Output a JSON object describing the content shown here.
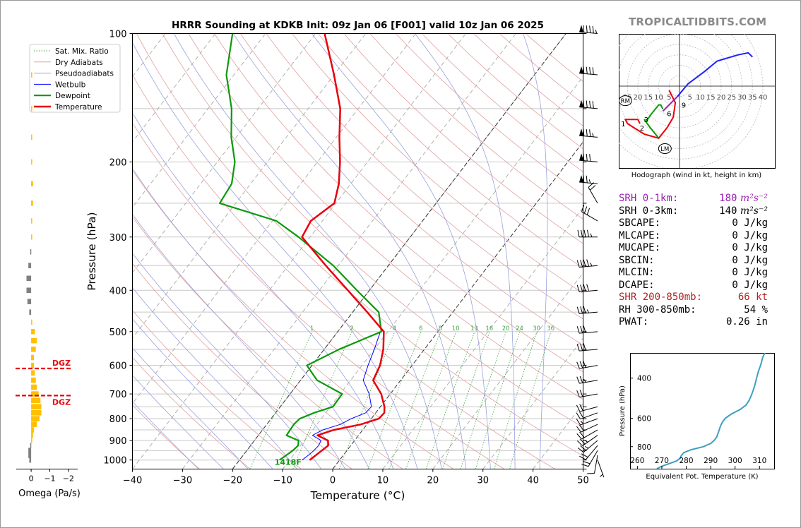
{
  "brand": "TROPICALTIDBITS.COM",
  "title": "HRRR Sounding at KDKB Init: 09z Jan 06 [F001] valid 10z Jan 06 2025",
  "colors": {
    "temperature": "#e8000b",
    "dewpoint": "#0a9a0a",
    "wetbulb": "#0000ff",
    "purple": "#9b1fb5",
    "hodo_blue": "#1f1fff",
    "thetae": "#3f9fbf",
    "dgz": "#e8000b",
    "omega_up": "#ffc000",
    "omega_down": "#808080"
  },
  "chart_data": [
    {
      "type": "line",
      "name": "skew-t",
      "xlabel": "Temperature (°C)",
      "ylabel": "Pressure (hPa)",
      "xlim": [
        -40,
        50
      ],
      "ylim": [
        1050,
        100
      ],
      "y_scale": "log",
      "xticks": [
        "−40",
        "−30",
        "−20",
        "−10",
        "0",
        "10",
        "20",
        "30",
        "40",
        "50"
      ],
      "yticks": [
        "100",
        "200",
        "300",
        "400",
        "500",
        "600",
        "700",
        "800",
        "900",
        "1000"
      ],
      "yticks_values": [
        100,
        200,
        300,
        400,
        500,
        600,
        700,
        800,
        900,
        1000
      ],
      "legend": {
        "placement": "top-left",
        "entries": [
          "Sat. Mix. Ratio",
          "Dry Adiabats",
          "Pseudoadiabats",
          "Wetbulb",
          "Dewpoint",
          "Temperature"
        ]
      },
      "temperature": {
        "p": [
          1000,
          975,
          950,
          925,
          900,
          875,
          850,
          825,
          800,
          775,
          750,
          700,
          650,
          600,
          550,
          500,
          450,
          400,
          350,
          300,
          275,
          250,
          225,
          200,
          175,
          150,
          125,
          100
        ],
        "t": [
          -6,
          -5.5,
          -5,
          -4.5,
          -5.3,
          -8.2,
          -5.8,
          -1.2,
          1.5,
          1.7,
          0.8,
          -1.8,
          -5.5,
          -6.4,
          -8.2,
          -10.8,
          -17.1,
          -24.3,
          -32.5,
          -41.6,
          -42.3,
          -40.3,
          -42.4,
          -45.5,
          -49.4,
          -53.6,
          -60,
          -68.2
        ]
      },
      "dewpoint": {
        "p": [
          1000,
          975,
          950,
          925,
          900,
          875,
          850,
          825,
          800,
          775,
          750,
          700,
          650,
          600,
          550,
          500,
          450,
          400,
          350,
          300,
          275,
          250,
          225,
          200,
          175,
          150,
          125,
          100
        ],
        "t": [
          -12,
          -11.4,
          -10.8,
          -10.5,
          -11.2,
          -14.4,
          -14.5,
          -14.6,
          -14.3,
          -12.3,
          -9.5,
          -9.6,
          -16.7,
          -21,
          -17,
          -11.3,
          -14.8,
          -22.5,
          -31,
          -42.3,
          -49.2,
          -63.2,
          -63.8,
          -66.5,
          -71,
          -75.3,
          -81.5,
          -86.6
        ]
      },
      "wetbulb": {
        "p": [
          1000,
          975,
          950,
          925,
          900,
          875,
          850,
          825,
          800,
          775,
          750,
          700,
          650,
          600,
          550,
          500
        ],
        "t": [
          -7.5,
          -7,
          -6.6,
          -6.4,
          -6.7,
          -9.2,
          -8,
          -5.3,
          -4,
          -2,
          -1.8,
          -4.2,
          -7.5,
          -8.8,
          -10,
          -11.5
        ]
      },
      "sat_mix_ratio_labels": [
        "1",
        "2",
        "4",
        "6",
        "8",
        "10",
        "13",
        "16",
        "20",
        "24",
        "30",
        "36"
      ],
      "sat_mix_ratio_values": [
        1,
        2,
        4,
        6,
        8,
        10,
        13,
        16,
        20,
        24,
        30,
        36
      ],
      "surface_label": "1418F",
      "wind_barbs": {
        "p": [
          1000,
          975,
          950,
          925,
          900,
          875,
          850,
          825,
          800,
          775,
          750,
          700,
          650,
          600,
          550,
          500,
          450,
          400,
          350,
          300,
          275,
          250,
          225,
          200,
          175,
          150,
          125,
          100
        ],
        "speed_kt": [
          5,
          12,
          18,
          22,
          25,
          25,
          20,
          18,
          16,
          18,
          20,
          22,
          24,
          28,
          30,
          32,
          35,
          40,
          45,
          45,
          30,
          20,
          75,
          80,
          85,
          90,
          90,
          95
        ],
        "dir_deg": [
          160,
          190,
          210,
          220,
          230,
          235,
          240,
          245,
          250,
          250,
          255,
          260,
          260,
          260,
          265,
          265,
          265,
          265,
          265,
          270,
          300,
          330,
          275,
          275,
          275,
          275,
          275,
          275
        ]
      }
    },
    {
      "type": "bar",
      "name": "omega",
      "xlabel": "Omega (Pa/s)",
      "xticks": [
        "0",
        "−1",
        "−2"
      ],
      "xlim": [
        0.8,
        -2.5
      ],
      "dgz_label": "DGZ",
      "dgz_pressures": [
        610,
        706
      ],
      "p": [
        1000,
        975,
        950,
        925,
        900,
        875,
        850,
        825,
        800,
        775,
        750,
        725,
        700,
        675,
        650,
        625,
        600,
        575,
        550,
        525,
        500,
        475,
        450,
        425,
        400,
        375,
        350,
        325,
        300,
        275,
        250,
        225,
        200,
        175,
        150,
        125
      ],
      "omega": [
        0.1,
        0.15,
        0.15,
        0.05,
        -0.05,
        -0.1,
        -0.15,
        -0.3,
        -0.45,
        -0.55,
        -0.55,
        -0.5,
        -0.4,
        -0.3,
        -0.25,
        -0.2,
        -0.15,
        -0.15,
        -0.25,
        -0.3,
        -0.2,
        -0.05,
        0.1,
        0.2,
        0.25,
        0.25,
        0.15,
        0.05,
        -0.05,
        -0.05,
        -0.1,
        -0.1,
        -0.05,
        -0.05,
        -0.05,
        -0.03
      ]
    },
    {
      "type": "line",
      "name": "hodograph",
      "caption": "Hodograph (wind in kt, height in km)",
      "ring_labels": [
        "5",
        "10",
        "15",
        "20",
        "25",
        "30",
        "35",
        "40"
      ],
      "ring_left_labels": [
        "25",
        "20",
        "15",
        "10",
        "5"
      ],
      "ring_values": [
        5,
        10,
        15,
        20,
        25,
        30,
        35,
        40
      ],
      "rm_label": "RM",
      "lm_label": "LM",
      "rm": [
        -26,
        -7
      ],
      "lm": [
        -7,
        -30
      ],
      "height_labels": [
        {
          "t": "1",
          "u": -27,
          "v": -18
        },
        {
          "t": "2",
          "u": -18,
          "v": -20
        },
        {
          "t": "3",
          "u": -16,
          "v": -16
        },
        {
          "t": "6",
          "u": -5,
          "v": -13
        },
        {
          "t": "9",
          "u": 2,
          "v": -9
        }
      ],
      "segments": [
        {
          "color_key": "temperature",
          "u": [
            -5,
            -2,
            -3,
            -6,
            -10,
            -17,
            -25,
            -26,
            -20,
            -19
          ],
          "v": [
            -2,
            -8,
            -15,
            -20,
            -25,
            -23,
            -18,
            -16,
            -16,
            -18
          ]
        },
        {
          "color_key": "dewpoint",
          "u": [
            -10,
            -14,
            -17,
            -16,
            -14,
            -10,
            -9,
            -8
          ],
          "v": [
            -25,
            -20,
            -16,
            -17,
            -14,
            -9,
            -9,
            -11
          ]
        },
        {
          "color_key": "purple",
          "u": [
            -8,
            -5,
            -3,
            -1
          ],
          "v": [
            -12,
            -9,
            -7,
            -5
          ]
        },
        {
          "color_key": "hodo_blue",
          "u": [
            -1,
            4,
            12,
            18,
            28,
            33,
            35
          ],
          "v": [
            -5,
            1,
            7,
            12,
            15,
            16,
            14
          ]
        }
      ]
    },
    {
      "type": "line",
      "name": "theta-e",
      "xlabel": "Equivalent Pot. Temperature (K)",
      "ylabel": "Pressure (hPa)",
      "xticks": [
        "260",
        "270",
        "280",
        "290",
        "300",
        "310"
      ],
      "xticks_values": [
        260,
        270,
        280,
        290,
        300,
        310
      ],
      "yticks": [
        "400",
        "600",
        "800"
      ],
      "yticks_values": [
        400,
        600,
        800
      ],
      "xlim": [
        257,
        316
      ],
      "ylim": [
        1000,
        310
      ],
      "p": [
        1000,
        975,
        950,
        925,
        900,
        875,
        850,
        825,
        800,
        775,
        750,
        725,
        700,
        675,
        650,
        625,
        600,
        575,
        550,
        525,
        500,
        475,
        450,
        425,
        400,
        375,
        350,
        325,
        300
      ],
      "theta_e": [
        268,
        270,
        273,
        276,
        277.5,
        278,
        279,
        282,
        287,
        290,
        291.5,
        292.5,
        293,
        293.5,
        294,
        294.8,
        296,
        298.5,
        302,
        304.5,
        305.8,
        306.7,
        307.5,
        308.2,
        308.8,
        309.5,
        310.5,
        311.3,
        312.8
      ]
    }
  ],
  "params": [
    {
      "label": "SRH 0-1km:",
      "value": "180",
      "unit": "m²s⁻²",
      "color": "#9b1fb5"
    },
    {
      "label": "SRH 0-3km:",
      "value": "140",
      "unit": "m²s⁻²",
      "color": "#000000"
    },
    {
      "label": "SBCAPE:",
      "value": "0 J/kg",
      "unit": "",
      "color": "#000000"
    },
    {
      "label": "MLCAPE:",
      "value": "0 J/kg",
      "unit": "",
      "color": "#000000"
    },
    {
      "label": "MUCAPE:",
      "value": "0 J/kg",
      "unit": "",
      "color": "#000000"
    },
    {
      "label": "SBCIN:",
      "value": "0 J/kg",
      "unit": "",
      "color": "#000000"
    },
    {
      "label": "MLCIN:",
      "value": "0 J/kg",
      "unit": "",
      "color": "#000000"
    },
    {
      "label": "DCAPE:",
      "value": "0 J/kg",
      "unit": "",
      "color": "#000000"
    },
    {
      "label": "SHR 200-850mb:",
      "value": "66 kt",
      "unit": "",
      "color": "#b22222"
    },
    {
      "label": "RH 300-850mb:",
      "value": "54 %",
      "unit": "",
      "color": "#000000"
    },
    {
      "label": "PWAT:",
      "value": "0.26 in",
      "unit": "",
      "color": "#000000"
    }
  ]
}
